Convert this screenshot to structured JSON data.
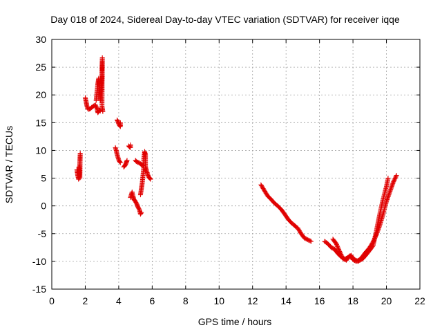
{
  "chart_data": {
    "type": "scatter",
    "title": "Day 018 of 2024, Sidereal Day-to-day VTEC variation (SDTVAR) for receiver iqqe",
    "xlabel": "GPS time / hours",
    "ylabel": "SDTVAR / TECUs",
    "xlim": [
      0,
      22
    ],
    "ylim": [
      -15,
      30
    ],
    "xticks": [
      "0",
      "2",
      "4",
      "6",
      "8",
      "10",
      "12",
      "14",
      "16",
      "18",
      "20",
      "22"
    ],
    "yticks": [
      "-15",
      "-10",
      "-5",
      "0",
      "5",
      "10",
      "15",
      "20",
      "25",
      "30"
    ],
    "grid": true,
    "marker": "+",
    "color": "#e00000",
    "segments": [
      {
        "name": "early-1",
        "points": [
          [
            1.5,
            6.5
          ],
          [
            1.55,
            5.5
          ],
          [
            1.6,
            4.8
          ],
          [
            1.65,
            6.2
          ],
          [
            1.7,
            9.5
          ],
          [
            1.68,
            5.0
          ],
          [
            1.62,
            7.0
          ]
        ]
      },
      {
        "name": "early-2",
        "points": [
          [
            2.0,
            19.5
          ],
          [
            2.05,
            18.8
          ],
          [
            2.1,
            18.0
          ],
          [
            2.15,
            17.5
          ],
          [
            2.2,
            17.4
          ],
          [
            2.3,
            17.5
          ],
          [
            2.4,
            17.8
          ],
          [
            2.5,
            18.0
          ],
          [
            2.6,
            18.2
          ],
          [
            2.7,
            17.6
          ],
          [
            2.75,
            16.8
          ],
          [
            2.8,
            17.0
          ],
          [
            2.85,
            17.3
          ],
          [
            2.9,
            17.1
          ]
        ]
      },
      {
        "name": "early-3",
        "points": [
          [
            2.65,
            19.0
          ],
          [
            2.7,
            20.5
          ],
          [
            2.75,
            22.0
          ],
          [
            2.8,
            23.0
          ],
          [
            2.85,
            21.0
          ],
          [
            2.9,
            19.0
          ],
          [
            2.95,
            21.5
          ],
          [
            3.0,
            23.2
          ],
          [
            3.0,
            25.0
          ],
          [
            3.02,
            26.7
          ],
          [
            3.0,
            18.0
          ],
          [
            3.05,
            17.0
          ]
        ]
      },
      {
        "name": "early-4",
        "points": [
          [
            3.9,
            15.5
          ],
          [
            3.95,
            15.2
          ],
          [
            4.0,
            14.8
          ],
          [
            4.05,
            14.5
          ],
          [
            4.1,
            14.3
          ],
          [
            4.1,
            15.0
          ]
        ]
      },
      {
        "name": "early-5",
        "points": [
          [
            3.8,
            10.5
          ],
          [
            3.85,
            10.0
          ],
          [
            3.9,
            9.3
          ],
          [
            3.95,
            8.8
          ],
          [
            4.0,
            8.3
          ],
          [
            4.05,
            8.0
          ],
          [
            4.1,
            7.8
          ]
        ]
      },
      {
        "name": "early-6",
        "points": [
          [
            4.3,
            7.0
          ],
          [
            4.35,
            7.2
          ],
          [
            4.4,
            7.4
          ],
          [
            4.45,
            7.8
          ],
          [
            4.5,
            8.2
          ]
        ]
      },
      {
        "name": "early-7",
        "points": [
          [
            4.6,
            10.8
          ],
          [
            4.65,
            10.6
          ],
          [
            4.7,
            10.5
          ],
          [
            4.7,
            11.0
          ]
        ]
      },
      {
        "name": "early-8",
        "points": [
          [
            4.7,
            1.5
          ],
          [
            4.75,
            2.0
          ],
          [
            4.8,
            2.5
          ],
          [
            4.85,
            1.8
          ],
          [
            4.9,
            1.2
          ],
          [
            4.95,
            1.0
          ],
          [
            5.0,
            0.8
          ],
          [
            5.05,
            0.5
          ],
          [
            5.1,
            0.2
          ],
          [
            5.15,
            -0.2
          ],
          [
            5.2,
            -0.5
          ],
          [
            5.25,
            -0.8
          ],
          [
            5.3,
            -1.5
          ],
          [
            5.35,
            -1.2
          ]
        ]
      },
      {
        "name": "early-9",
        "points": [
          [
            5.0,
            8.2
          ],
          [
            5.05,
            8.0
          ],
          [
            5.1,
            7.9
          ],
          [
            5.2,
            7.8
          ],
          [
            5.3,
            7.6
          ],
          [
            5.4,
            7.3
          ],
          [
            5.5,
            7.2
          ]
        ]
      },
      {
        "name": "early-10",
        "points": [
          [
            5.3,
            2.0
          ],
          [
            5.35,
            3.0
          ],
          [
            5.4,
            4.0
          ],
          [
            5.45,
            5.5
          ],
          [
            5.5,
            7.0
          ],
          [
            5.5,
            8.5
          ],
          [
            5.55,
            9.8
          ],
          [
            5.6,
            9.2
          ],
          [
            5.6,
            6.8
          ]
        ]
      },
      {
        "name": "early-11",
        "points": [
          [
            5.6,
            7.0
          ],
          [
            5.65,
            6.5
          ],
          [
            5.7,
            6.0
          ],
          [
            5.75,
            5.5
          ],
          [
            5.8,
            5.2
          ],
          [
            5.85,
            5.0
          ],
          [
            5.9,
            4.8
          ]
        ]
      },
      {
        "name": "late-1",
        "points": [
          [
            12.5,
            3.8
          ],
          [
            12.7,
            2.8
          ],
          [
            12.9,
            1.8
          ],
          [
            13.1,
            1.2
          ],
          [
            13.3,
            0.5
          ],
          [
            13.5,
            0.0
          ],
          [
            13.7,
            -0.6
          ],
          [
            13.9,
            -1.4
          ],
          [
            14.1,
            -2.3
          ],
          [
            14.3,
            -3.0
          ],
          [
            14.5,
            -3.5
          ],
          [
            14.6,
            -3.8
          ],
          [
            14.7,
            -4.0
          ],
          [
            14.9,
            -5.0
          ],
          [
            15.1,
            -5.8
          ],
          [
            15.3,
            -6.1
          ],
          [
            15.5,
            -6.4
          ]
        ]
      },
      {
        "name": "late-2",
        "points": [
          [
            16.3,
            -6.4
          ],
          [
            16.5,
            -6.8
          ],
          [
            16.7,
            -7.5
          ],
          [
            16.9,
            -7.8
          ],
          [
            17.1,
            -8.6
          ],
          [
            17.3,
            -9.2
          ],
          [
            17.5,
            -9.6
          ],
          [
            17.7,
            -9.3
          ],
          [
            17.9,
            -8.9
          ],
          [
            18.0,
            -9.7
          ],
          [
            18.2,
            -10.0
          ],
          [
            18.4,
            -9.7
          ],
          [
            18.6,
            -9.0
          ],
          [
            18.8,
            -8.2
          ],
          [
            19.0,
            -7.5
          ],
          [
            19.2,
            -6.5
          ],
          [
            19.4,
            -5.2
          ],
          [
            19.6,
            -3.5
          ],
          [
            19.8,
            -1.5
          ],
          [
            20.0,
            0.8
          ],
          [
            20.2,
            2.5
          ],
          [
            20.4,
            4.2
          ],
          [
            20.6,
            5.5
          ]
        ]
      },
      {
        "name": "late-3",
        "points": [
          [
            16.8,
            -6.0
          ],
          [
            17.0,
            -6.8
          ],
          [
            17.2,
            -8.2
          ],
          [
            17.4,
            -9.5
          ],
          [
            17.6,
            -9.8
          ],
          [
            17.8,
            -9.0
          ],
          [
            18.0,
            -9.5
          ],
          [
            18.3,
            -10.0
          ],
          [
            18.6,
            -9.5
          ],
          [
            18.9,
            -8.4
          ],
          [
            19.2,
            -7.2
          ],
          [
            19.4,
            -4.5
          ],
          [
            19.6,
            -1.5
          ],
          [
            19.8,
            1.2
          ],
          [
            20.0,
            3.5
          ],
          [
            20.1,
            5.0
          ]
        ]
      }
    ]
  }
}
